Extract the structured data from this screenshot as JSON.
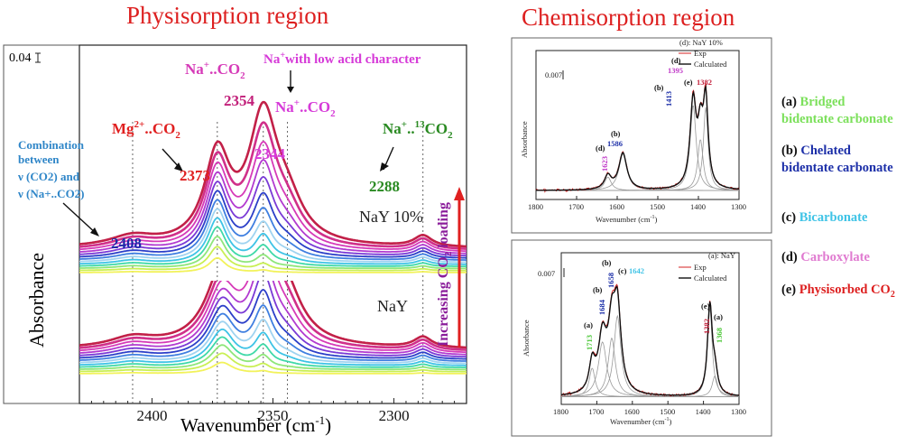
{
  "titles": {
    "physisorption": "Physisorption region",
    "chemisorption": "Chemisorption region"
  },
  "colors": {
    "title": "#dd1f1f",
    "series_palette": [
      "#f2f25a",
      "#c9ef54",
      "#8ee67a",
      "#3fd9a8",
      "#3ec3e6",
      "#9fd3f0",
      "#3f7fe0",
      "#2c3fc8",
      "#7a3ad6",
      "#b23ad0",
      "#d63ab8",
      "#d0308a",
      "#c22048"
    ]
  },
  "chart_data": [
    {
      "type": "line",
      "name": "physisorption",
      "xlabel": "Wavenumber (cm-1)",
      "ylabel": "Absorbance",
      "xlim": [
        2430,
        2270
      ],
      "xticks": [
        2400,
        2350,
        2300
      ],
      "xtick_labels": [
        "2400",
        "2350",
        "2300"
      ],
      "scale_label": "0.04",
      "arrow_label": "Increasing CO2 loading",
      "panels": [
        {
          "name": "NaY 10%",
          "label": "NaY 10%",
          "n_curves": 13,
          "peaks": [
            {
              "center": 2373,
              "width": 4,
              "scale": 0.95
            },
            {
              "center": 2354,
              "width": 2.6,
              "scale": 1.35
            },
            {
              "center": 2344,
              "width": 5,
              "scale": 0.35
            },
            {
              "center": 2408,
              "width": 7,
              "scale": 0.11
            },
            {
              "center": 2288,
              "width": 2.8,
              "scale": 0.12
            }
          ]
        },
        {
          "name": "NaY",
          "label": "NaY",
          "n_curves": 13,
          "peaks": [
            {
              "center": 2371,
              "width": 5,
              "scale": 0.75
            },
            {
              "center": 2354,
              "width": 2.5,
              "scale": 1.45
            },
            {
              "center": 2344,
              "width": 5,
              "scale": 0.35
            },
            {
              "center": 2408,
              "width": 7,
              "scale": 0.11
            },
            {
              "center": 2288,
              "width": 2.8,
              "scale": 0.12
            }
          ]
        }
      ],
      "guide_lines": [
        2408,
        2373,
        2354,
        2344,
        2288
      ],
      "annotations": {
        "combination": [
          "Combination",
          "between",
          "ν (CO2) and",
          "ν (Na+..CO2)"
        ],
        "v2408": "2408",
        "mg_co2": "Mg2+..CO2",
        "v2373": "2373",
        "na_co2_top": "Na+..CO2",
        "v2354": "2354",
        "na_low_acid": "Na+with low acid character",
        "na_co2_mid": "Na+..CO2",
        "v2344": "2344",
        "na_13co2": "Na+..13CO2",
        "v2288": "2288"
      }
    },
    {
      "type": "line",
      "name": "chemisorption-nay10",
      "xlabel": "Wavenumber (cm-1)",
      "ylabel": "Absorbance",
      "xlim": [
        1800,
        1300
      ],
      "xticks": [
        1800,
        1700,
        1600,
        1500,
        1400,
        1300
      ],
      "scale_label": "0.007",
      "panel_label": "(d): NaY 10%",
      "legend": [
        "Exp",
        "Calculated"
      ],
      "components": [
        {
          "center": 1623,
          "width": 10,
          "height": 0.11
        },
        {
          "center": 1586,
          "width": 12,
          "height": 0.3
        },
        {
          "center": 1413,
          "width": 9,
          "height": 0.7
        },
        {
          "center": 1395,
          "width": 8,
          "height": 0.42
        },
        {
          "center": 1382,
          "width": 7,
          "height": 0.68
        }
      ],
      "peak_labels": [
        {
          "tag": "(d)",
          "value": "1623"
        },
        {
          "tag": "(b)",
          "value": "1586"
        },
        {
          "tag": "(b)",
          "value": "1413"
        },
        {
          "tag": "(d)",
          "value": "1395"
        },
        {
          "tag": "(e)",
          "value": "1382"
        }
      ]
    },
    {
      "type": "line",
      "name": "chemisorption-nay",
      "xlabel": "Wavenumber (cm-1)",
      "ylabel": "Absorbance",
      "xlim": [
        1800,
        1300
      ],
      "xticks": [
        1800,
        1700,
        1600,
        1500,
        1400,
        1300
      ],
      "scale_label": "0.007",
      "panel_label": "(a): NaY",
      "legend": [
        "Exp",
        "Calculated"
      ],
      "components": [
        {
          "center": 1713,
          "width": 10,
          "height": 0.22
        },
        {
          "center": 1684,
          "width": 14,
          "height": 0.42
        },
        {
          "center": 1658,
          "width": 12,
          "height": 0.45
        },
        {
          "center": 1642,
          "width": 12,
          "height": 0.62
        },
        {
          "center": 1382,
          "width": 8,
          "height": 0.68
        },
        {
          "center": 1368,
          "width": 9,
          "height": 0.16
        }
      ],
      "peak_labels": [
        {
          "tag": "(a)",
          "value": "1713"
        },
        {
          "tag": "(b)",
          "value": "1684"
        },
        {
          "tag": "(b)",
          "value": "1658"
        },
        {
          "tag": "(c)",
          "value": "1642"
        },
        {
          "tag": "(e)",
          "value": "1382"
        },
        {
          "tag": "(a)",
          "value": "1368"
        }
      ]
    }
  ],
  "legend": [
    {
      "tag": "(a)",
      "line1": "Bridged",
      "line2": "bidentate carbonate",
      "color": "#7be05a"
    },
    {
      "tag": "(b)",
      "line1": "Chelated",
      "line2": "bidentate carbonate",
      "color": "#1c2fa8"
    },
    {
      "tag": "(c)",
      "line1": "Bicarbonate",
      "line2": "",
      "color": "#3ec3e6"
    },
    {
      "tag": "(d)",
      "line1": "Carboxylate",
      "line2": "",
      "color": "#e07ad0"
    },
    {
      "tag": "(e)",
      "line1": "Physisorbed CO2",
      "line2": "",
      "color": "#dd1f1f"
    }
  ]
}
